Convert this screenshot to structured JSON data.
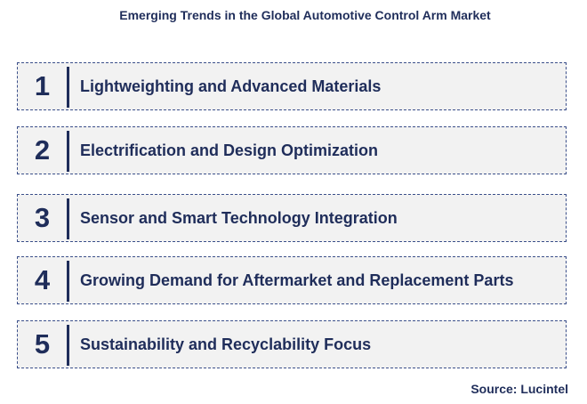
{
  "title": "Emerging Trends in the Global Automotive Control Arm Market",
  "trends": [
    {
      "number": "1",
      "label": "Lightweighting and Advanced Materials"
    },
    {
      "number": "2",
      "label": "Electrification and Design Optimization"
    },
    {
      "number": "3",
      "label": "Sensor and Smart Technology Integration"
    },
    {
      "number": "4",
      "label": "Growing Demand for Aftermarket and Replacement Parts"
    },
    {
      "number": "5",
      "label": "Sustainability and Recyclability Focus"
    }
  ],
  "source": "Source: Lucintel",
  "colors": {
    "text": "#1f2d5a",
    "box_fill": "#f2f2f2",
    "box_border": "#3b4f8a"
  }
}
